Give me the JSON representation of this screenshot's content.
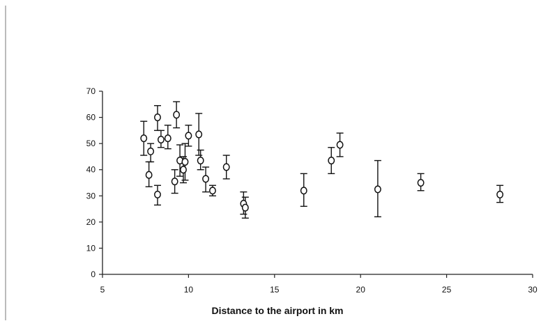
{
  "chart_data": {
    "type": "scatter",
    "title": "",
    "xlabel": "Distance to the airport in km",
    "ylabel": "",
    "xlim": [
      5,
      30
    ],
    "ylim": [
      0,
      70
    ],
    "xticks": [
      "5",
      "10",
      "15",
      "20",
      "25",
      "30"
    ],
    "yticks": [
      "0",
      "10",
      "20",
      "30",
      "40",
      "50",
      "60",
      "70"
    ],
    "grid": false,
    "legend": "none",
    "error_bars": true,
    "series": [
      {
        "points": [
          {
            "x": 7.4,
            "y": 52,
            "lo": 45.5,
            "hi": 58.5
          },
          {
            "x": 7.7,
            "y": 38,
            "lo": 33.5,
            "hi": 43
          },
          {
            "x": 7.8,
            "y": 47,
            "lo": 43,
            "hi": 50
          },
          {
            "x": 8.2,
            "y": 60,
            "lo": 55,
            "hi": 64.5
          },
          {
            "x": 8.2,
            "y": 30.5,
            "lo": 26.5,
            "hi": 34
          },
          {
            "x": 8.4,
            "y": 51.5,
            "lo": 48.5,
            "hi": 55
          },
          {
            "x": 8.8,
            "y": 52,
            "lo": 48,
            "hi": 57
          },
          {
            "x": 9.2,
            "y": 35.5,
            "lo": 31,
            "hi": 40
          },
          {
            "x": 9.3,
            "y": 61,
            "lo": 56,
            "hi": 66
          },
          {
            "x": 9.5,
            "y": 43.5,
            "lo": 37.5,
            "hi": 49.5
          },
          {
            "x": 9.7,
            "y": 40,
            "lo": 35,
            "hi": 45
          },
          {
            "x": 9.8,
            "y": 43,
            "lo": 36,
            "hi": 50
          },
          {
            "x": 10.0,
            "y": 53,
            "lo": 49,
            "hi": 57
          },
          {
            "x": 10.6,
            "y": 53.5,
            "lo": 45.5,
            "hi": 61.5
          },
          {
            "x": 10.7,
            "y": 43.5,
            "lo": 40,
            "hi": 47.5
          },
          {
            "x": 11.0,
            "y": 36.5,
            "lo": 31.5,
            "hi": 41
          },
          {
            "x": 11.4,
            "y": 32,
            "lo": 30,
            "hi": 34
          },
          {
            "x": 12.2,
            "y": 41,
            "lo": 36.5,
            "hi": 45.5
          },
          {
            "x": 13.2,
            "y": 27,
            "lo": 23,
            "hi": 31.5
          },
          {
            "x": 13.3,
            "y": 25.5,
            "lo": 21.5,
            "hi": 29.5
          },
          {
            "x": 16.7,
            "y": 32,
            "lo": 26,
            "hi": 38.5
          },
          {
            "x": 18.3,
            "y": 43.5,
            "lo": 38.5,
            "hi": 48.5
          },
          {
            "x": 18.8,
            "y": 49.5,
            "lo": 45,
            "hi": 54
          },
          {
            "x": 21.0,
            "y": 32.5,
            "lo": 22,
            "hi": 43.5
          },
          {
            "x": 23.5,
            "y": 35,
            "lo": 32,
            "hi": 38.5
          },
          {
            "x": 28.1,
            "y": 30.5,
            "lo": 27.5,
            "hi": 34
          }
        ]
      }
    ]
  }
}
